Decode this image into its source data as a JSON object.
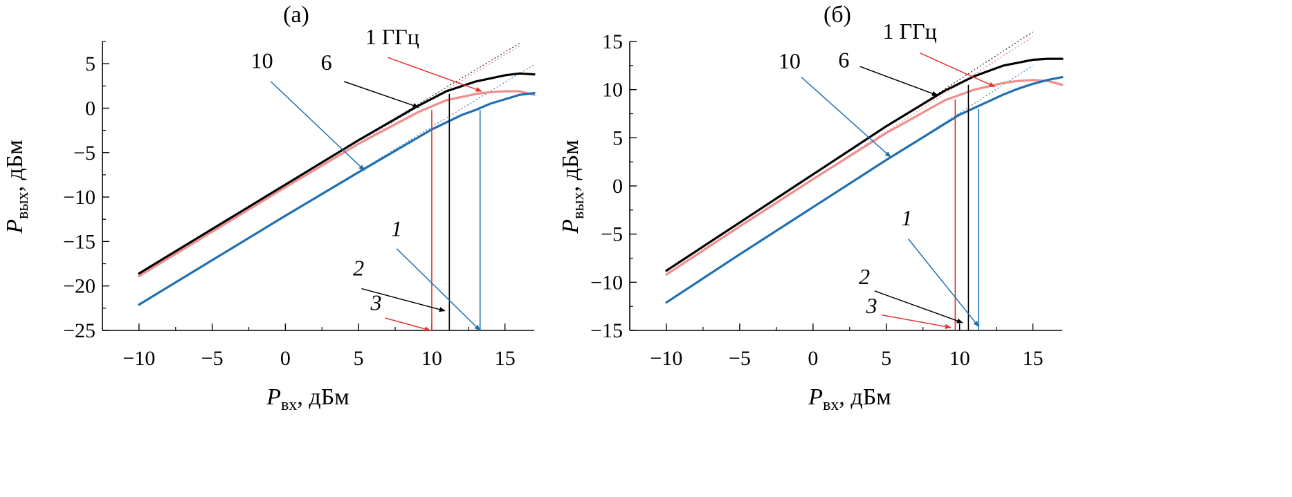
{
  "chart_data": [
    {
      "panel": "(a)",
      "type": "line",
      "xlabel_main": "P",
      "xlabel_sub": "вх",
      "xlabel_unit": ", дБм",
      "ylabel_main": "P",
      "ylabel_sub": "вых",
      "ylabel_unit": ", дБм",
      "xlim": [
        -12.5,
        17
      ],
      "ylim": [
        -25,
        7.5
      ],
      "xticks": [
        -10,
        -5,
        0,
        5,
        10,
        15
      ],
      "xtick_labels": [
        "−10",
        "−5",
        "0",
        "5",
        "10",
        "15"
      ],
      "yticks": [
        -25,
        -20,
        -15,
        -10,
        -5,
        0,
        5
      ],
      "ytick_labels": [
        "−25",
        "−20",
        "−15",
        "−10",
        "−5",
        "0",
        "5"
      ],
      "grid": false,
      "series": [
        {
          "color": "#000000",
          "x": [
            -10,
            -5,
            0,
            5,
            9,
            11,
            13,
            15,
            16,
            17
          ],
          "y": [
            -18.6,
            -13.6,
            -8.6,
            -3.6,
            0.2,
            1.9,
            3.0,
            3.7,
            3.9,
            3.8
          ]
        },
        {
          "color": "#f08c8c",
          "x": [
            -10,
            -5,
            0,
            5,
            9,
            11,
            13,
            14,
            15,
            16,
            17
          ],
          "y": [
            -18.9,
            -13.9,
            -8.9,
            -4.0,
            -0.5,
            0.9,
            1.6,
            1.8,
            1.9,
            1.9,
            1.5
          ]
        },
        {
          "color": "#1f6fb2",
          "x": [
            -10,
            -5,
            0,
            5,
            10,
            12,
            13,
            14,
            15,
            16,
            17
          ],
          "y": [
            -22.1,
            -17.1,
            -12.1,
            -7.2,
            -2.4,
            -0.8,
            -0.2,
            0.5,
            1.0,
            1.5,
            1.7
          ]
        }
      ],
      "tangents": [
        {
          "color": "#000000",
          "x": [
            -10,
            16
          ],
          "y": [
            -18.5,
            7.3
          ]
        },
        {
          "color": "#e07070",
          "x": [
            -10,
            16
          ],
          "y": [
            -18.8,
            7.0
          ]
        },
        {
          "color": "#1f6fb2",
          "x": [
            -10,
            17
          ],
          "y": [
            -22.1,
            4.9
          ]
        }
      ],
      "markers": [
        {
          "color": "#e83030",
          "x": 10.0,
          "y0": -25,
          "y1": -0.2
        },
        {
          "color": "#000000",
          "x": 11.2,
          "y0": -25,
          "y1": 1.6
        },
        {
          "color": "#1f6fb2",
          "x": 13.3,
          "y0": -25,
          "y1": -0.2
        }
      ],
      "annotations": [
        {
          "text": "1 ГГц",
          "italic": false,
          "tx": 7.3,
          "ty": 7.2,
          "color": "#e83030",
          "from": [
            7.0,
            5.7
          ],
          "to": [
            13.4,
            1.9
          ]
        },
        {
          "text": "6",
          "italic": false,
          "tx": 2.8,
          "ty": 4.3,
          "color": "#000000",
          "from": [
            4.0,
            3.0
          ],
          "to": [
            9.1,
            0.1
          ]
        },
        {
          "text": "10",
          "italic": false,
          "tx": -1.6,
          "ty": 4.5,
          "color": "#1f6fb2",
          "from": [
            -1.0,
            3.0
          ],
          "to": [
            5.4,
            -7.0
          ]
        },
        {
          "text": "1",
          "italic": true,
          "tx": 7.6,
          "ty": -14.4,
          "color": "#1f6fb2",
          "from": [
            7.6,
            -15.8
          ],
          "to": [
            13.3,
            -25.0
          ]
        },
        {
          "text": "2",
          "italic": true,
          "tx": 5.0,
          "ty": -18.8,
          "color": "#000000",
          "from": [
            5.2,
            -20.3
          ],
          "to": [
            10.9,
            -22.8
          ]
        },
        {
          "text": "3",
          "italic": true,
          "tx": 6.2,
          "ty": -22.7,
          "color": "#e83030",
          "from": [
            6.8,
            -23.6
          ],
          "to": [
            9.9,
            -25.0
          ]
        }
      ]
    },
    {
      "panel": "(б)",
      "type": "line",
      "xlabel_main": "P",
      "xlabel_sub": "вх",
      "xlabel_unit": ", дБм",
      "ylabel_main": "P",
      "ylabel_sub": "вых",
      "ylabel_unit": ", дБм",
      "xlim": [
        -12.5,
        17
      ],
      "ylim": [
        -15,
        15
      ],
      "xticks": [
        -10,
        -5,
        0,
        5,
        10,
        15
      ],
      "xtick_labels": [
        "−10",
        "−5",
        "0",
        "5",
        "10",
        "15"
      ],
      "yticks": [
        -15,
        -10,
        -5,
        0,
        5,
        10,
        15
      ],
      "ytick_labels": [
        "−15",
        "−10",
        "−5",
        "0",
        "5",
        "10",
        "15"
      ],
      "grid": false,
      "series": [
        {
          "color": "#000000",
          "x": [
            -10,
            -5,
            0,
            5,
            9,
            11,
            13,
            15,
            16,
            17
          ],
          "y": [
            -8.8,
            -3.8,
            1.2,
            6.2,
            9.9,
            11.4,
            12.5,
            13.1,
            13.2,
            13.2
          ]
        },
        {
          "color": "#f08c8c",
          "x": [
            -10,
            -5,
            0,
            5,
            9,
            11,
            13,
            14,
            15,
            16,
            17
          ],
          "y": [
            -9.2,
            -4.2,
            0.7,
            5.5,
            8.9,
            10.0,
            10.7,
            10.9,
            11.0,
            10.9,
            10.5
          ]
        },
        {
          "color": "#1f6fb2",
          "x": [
            -10,
            -5,
            0,
            5,
            10,
            12,
            13,
            14,
            15,
            16,
            17
          ],
          "y": [
            -12.1,
            -7.1,
            -2.2,
            2.7,
            7.4,
            8.8,
            9.5,
            10.1,
            10.6,
            11.0,
            11.3
          ]
        }
      ],
      "tangents": [
        {
          "color": "#000000",
          "x": [
            -10,
            15
          ],
          "y": [
            -8.7,
            16.0
          ]
        },
        {
          "color": "#e07070",
          "x": [
            -10,
            15
          ],
          "y": [
            -9.1,
            15.5
          ]
        },
        {
          "color": "#1f6fb2",
          "x": [
            -10,
            15
          ],
          "y": [
            -12.1,
            12.5
          ]
        }
      ],
      "markers": [
        {
          "color": "#e83030",
          "x": 9.7,
          "y0": -15,
          "y1": 9.0
        },
        {
          "color": "#000000",
          "x": 10.6,
          "y0": -15,
          "y1": 10.5
        },
        {
          "color": "#1f6fb2",
          "x": 11.3,
          "y0": -15,
          "y1": 8.0
        }
      ],
      "annotations": [
        {
          "text": "1 ГГц",
          "italic": false,
          "tx": 6.6,
          "ty": 15.3,
          "color": "#e83030",
          "from": [
            7.3,
            13.8
          ],
          "to": [
            12.4,
            10.3
          ]
        },
        {
          "text": "6",
          "italic": false,
          "tx": 2.1,
          "ty": 12.3,
          "color": "#000000",
          "from": [
            3.2,
            12.4
          ],
          "to": [
            8.5,
            9.4
          ]
        },
        {
          "text": "10",
          "italic": false,
          "tx": -1.6,
          "ty": 12.2,
          "color": "#1f6fb2",
          "from": [
            -0.8,
            11.3
          ],
          "to": [
            5.3,
            3.0
          ]
        },
        {
          "text": "1",
          "italic": true,
          "tx": 6.4,
          "ty": -4.1,
          "color": "#1f6fb2",
          "from": [
            6.5,
            -5.5
          ],
          "to": [
            11.3,
            -14.6
          ]
        },
        {
          "text": "2",
          "italic": true,
          "tx": 3.5,
          "ty": -10.2,
          "color": "#000000",
          "from": [
            4.2,
            -10.9
          ],
          "to": [
            10.2,
            -14.2
          ]
        },
        {
          "text": "3",
          "italic": true,
          "tx": 4.0,
          "ty": -13.2,
          "color": "#e83030",
          "from": [
            4.7,
            -13.4
          ],
          "to": [
            9.4,
            -14.7
          ]
        }
      ]
    }
  ]
}
